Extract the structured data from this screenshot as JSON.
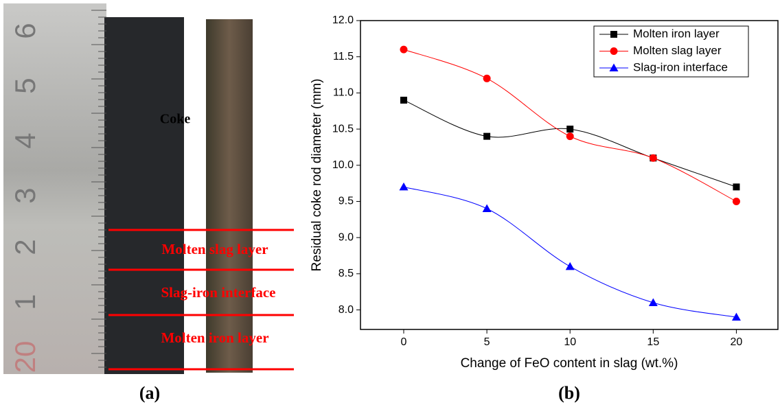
{
  "panel_a": {
    "ruler_labels": [
      "6",
      "5",
      "4",
      "3",
      "2",
      "1",
      "20"
    ],
    "coke_label": "Coke",
    "layers": [
      "Molten slag layer",
      "Slag-iron interface",
      "Molten iron layer"
    ],
    "caption": "(a)"
  },
  "chart_data": {
    "type": "line",
    "panel_label": "(b)",
    "x_label": "Change of FeO content in slag (wt.%)",
    "y_label": "Residual coke rod diameter (mm)",
    "x": [
      0,
      5,
      10,
      15,
      20
    ],
    "series": [
      {
        "name": "Molten iron layer",
        "color": "#000000",
        "marker": "square",
        "values": [
          10.9,
          10.4,
          10.5,
          10.1,
          9.7
        ]
      },
      {
        "name": "Molten slag layer",
        "color": "#ff0000",
        "marker": "circle",
        "values": [
          11.6,
          11.2,
          10.4,
          10.1,
          9.5
        ]
      },
      {
        "name": "Slag-iron interface",
        "color": "#0000ff",
        "marker": "triangle",
        "values": [
          9.7,
          9.4,
          8.6,
          8.1,
          7.9
        ]
      }
    ],
    "xlim": [
      -2.6,
      22.5
    ],
    "ylim": [
      7.73,
      12.0
    ],
    "xticks": [
      0,
      5,
      10,
      15,
      20
    ],
    "yticks": [
      {
        "value": 8,
        "label": "8.0"
      },
      8.5,
      {
        "value": 9,
        "label": "9.0"
      },
      9.5,
      {
        "value": 10,
        "label": "10.0"
      },
      10.5,
      {
        "value": 11,
        "label": "11.0"
      },
      11.5,
      {
        "value": 12,
        "label": "12.0"
      }
    ],
    "legend": "top-right"
  }
}
